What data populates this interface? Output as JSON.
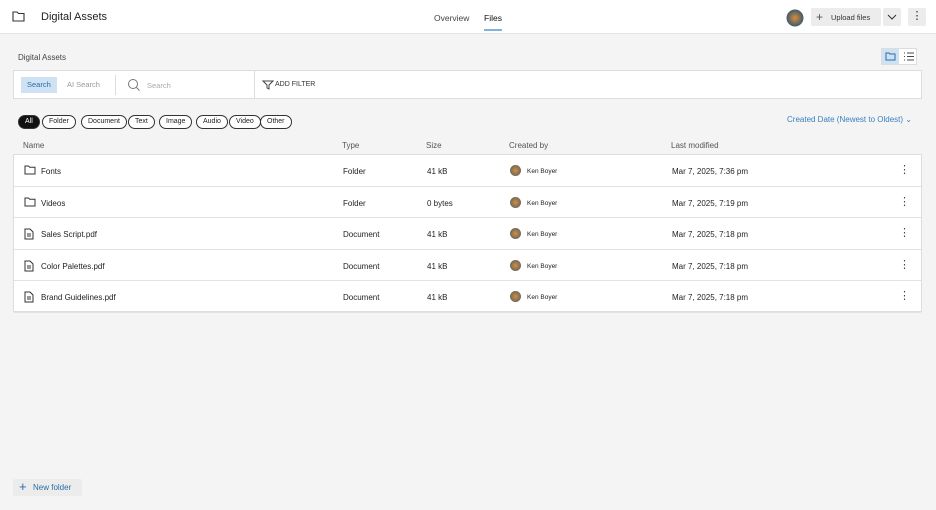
{
  "header": {
    "title": "Digital Assets",
    "tabs": [
      "Overview",
      "Files"
    ],
    "active_tab": 1,
    "upload_button": "Upload files"
  },
  "breadcrumb": "Digital Assets",
  "search": {
    "modes": [
      "Search",
      "AI Search"
    ],
    "active_mode": 0,
    "placeholder": "Search",
    "add_filter": "ADD FILTER"
  },
  "filters": [
    "All",
    "Folder",
    "Document",
    "Text",
    "Image",
    "Audio",
    "Video",
    "Other"
  ],
  "active_filter": 0,
  "sort": "Created Date (Newest to Oldest)",
  "table": {
    "columns": [
      "Name",
      "Type",
      "Size",
      "Created by",
      "Last modified"
    ],
    "rows": [
      {
        "icon": "folder",
        "cells": [
          "Fonts",
          "Folder",
          "41 kB",
          "Ken Boyer",
          "Mar 7, 2025, 7:36 pm"
        ]
      },
      {
        "icon": "folder",
        "cells": [
          "Videos",
          "Folder",
          "0 bytes",
          "Ken Boyer",
          "Mar 7, 2025, 7:19 pm"
        ]
      },
      {
        "icon": "file",
        "cells": [
          "Sales Script.pdf",
          "Document",
          "41 kB",
          "Ken Boyer",
          "Mar 7, 2025, 7:18 pm"
        ]
      },
      {
        "icon": "file",
        "cells": [
          "Color Palettes.pdf",
          "Document",
          "41 kB",
          "Ken Boyer",
          "Mar 7, 2025, 7:18 pm"
        ]
      },
      {
        "icon": "file",
        "cells": [
          "Brand Guidelines.pdf",
          "Document",
          "41 kB",
          "Ken Boyer",
          "Mar 7, 2025, 7:18 pm"
        ]
      }
    ]
  },
  "new_folder": "New folder"
}
